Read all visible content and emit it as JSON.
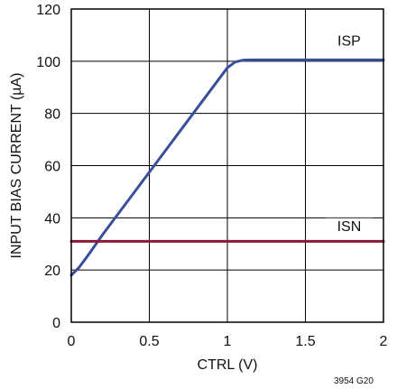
{
  "chart_data": {
    "type": "line",
    "xlabel": "CTRL (V)",
    "ylabel": "INPUT BIAS CURRENT (µA)",
    "xlim": [
      0,
      2
    ],
    "ylim": [
      0,
      120
    ],
    "x_ticks": [
      "0",
      "0.5",
      "1",
      "1.5",
      "2"
    ],
    "y_ticks": [
      "0",
      "20",
      "40",
      "60",
      "80",
      "100",
      "120"
    ],
    "grid": true,
    "note": "3954 G20",
    "series": [
      {
        "name": "ISP",
        "color": "#3a4f9c",
        "x": [
          0,
          0.05,
          0.1,
          0.2,
          0.3,
          0.4,
          0.5,
          0.6,
          0.7,
          0.8,
          0.9,
          1.0,
          1.05,
          1.1,
          1.15,
          1.2,
          1.3,
          1.5,
          1.7,
          2.0
        ],
        "y": [
          18,
          21,
          25,
          33.5,
          41.5,
          49.5,
          57.5,
          65.5,
          73.5,
          81.5,
          89.5,
          97.5,
          99.7,
          100.4,
          100.5,
          100.5,
          100.5,
          100.5,
          100.5,
          100.5
        ]
      },
      {
        "name": "ISN",
        "color": "#8b1a3a",
        "x": [
          0,
          2
        ],
        "y": [
          31,
          31
        ]
      }
    ]
  }
}
